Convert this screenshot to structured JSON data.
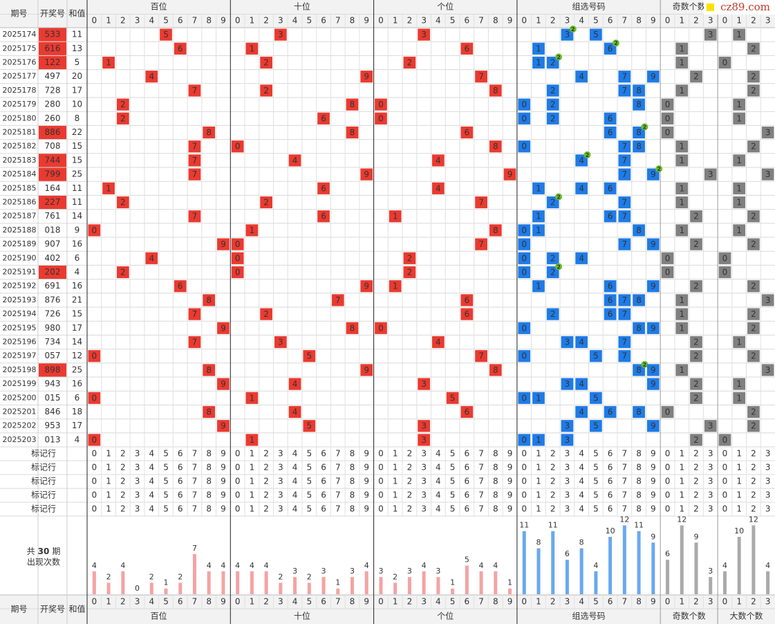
{
  "header": {
    "columns": [
      "期号",
      "开奖号",
      "和值"
    ],
    "groups": [
      "百位",
      "十位",
      "个位",
      "组选号码",
      "奇数个数",
      "大数个数"
    ],
    "digits": [
      0,
      1,
      2,
      3,
      4,
      5,
      6,
      7,
      8,
      9
    ],
    "counts": [
      0,
      1,
      2,
      3
    ]
  },
  "watermark": "cz89.com",
  "rows": [
    {
      "period": 2025174,
      "number": "533",
      "sum": 11,
      "digits": [
        5,
        3,
        3
      ],
      "odd": 3,
      "big": 1,
      "repeat": 2
    },
    {
      "period": 2025175,
      "number": "616",
      "sum": 13,
      "digits": [
        6,
        1,
        6
      ],
      "odd": 1,
      "big": 2,
      "repeat": 2
    },
    {
      "period": 2025176,
      "number": "122",
      "sum": 5,
      "digits": [
        1,
        2,
        2
      ],
      "odd": 1,
      "big": 0,
      "repeat": 2
    },
    {
      "period": 2025177,
      "number": "497",
      "sum": 20,
      "digits": [
        4,
        9,
        7
      ],
      "odd": 2,
      "big": 2
    },
    {
      "period": 2025178,
      "number": "728",
      "sum": 17,
      "digits": [
        7,
        2,
        8
      ],
      "odd": 1,
      "big": 2
    },
    {
      "period": 2025179,
      "number": "280",
      "sum": 10,
      "digits": [
        2,
        8,
        0
      ],
      "odd": 0,
      "big": 1
    },
    {
      "period": 2025180,
      "number": "260",
      "sum": 8,
      "digits": [
        2,
        6,
        0
      ],
      "odd": 0,
      "big": 1
    },
    {
      "period": 2025181,
      "number": "886",
      "sum": 22,
      "digits": [
        8,
        8,
        6
      ],
      "odd": 0,
      "big": 3,
      "repeat": 2
    },
    {
      "period": 2025182,
      "number": "708",
      "sum": 15,
      "digits": [
        7,
        0,
        8
      ],
      "odd": 1,
      "big": 2
    },
    {
      "period": 2025183,
      "number": "744",
      "sum": 15,
      "digits": [
        7,
        4,
        4
      ],
      "odd": 1,
      "big": 1,
      "repeat": 2
    },
    {
      "period": 2025184,
      "number": "799",
      "sum": 25,
      "digits": [
        7,
        9,
        9
      ],
      "odd": 3,
      "big": 3,
      "repeat": 2
    },
    {
      "period": 2025185,
      "number": "164",
      "sum": 11,
      "digits": [
        1,
        6,
        4
      ],
      "odd": 1,
      "big": 1
    },
    {
      "period": 2025186,
      "number": "227",
      "sum": 11,
      "digits": [
        2,
        2,
        7
      ],
      "odd": 1,
      "big": 1,
      "repeat": 2
    },
    {
      "period": 2025187,
      "number": "761",
      "sum": 14,
      "digits": [
        7,
        6,
        1
      ],
      "odd": 2,
      "big": 2
    },
    {
      "period": 2025188,
      "number": "018",
      "sum": 9,
      "digits": [
        0,
        1,
        8
      ],
      "odd": 1,
      "big": 1
    },
    {
      "period": 2025189,
      "number": "907",
      "sum": 16,
      "digits": [
        9,
        0,
        7
      ],
      "odd": 2,
      "big": 2
    },
    {
      "period": 2025190,
      "number": "402",
      "sum": 6,
      "digits": [
        4,
        0,
        2
      ],
      "odd": 0,
      "big": 0
    },
    {
      "period": 2025191,
      "number": "202",
      "sum": 4,
      "digits": [
        2,
        0,
        2
      ],
      "odd": 0,
      "big": 0,
      "repeat": 2
    },
    {
      "period": 2025192,
      "number": "691",
      "sum": 16,
      "digits": [
        6,
        9,
        1
      ],
      "odd": 2,
      "big": 2
    },
    {
      "period": 2025193,
      "number": "876",
      "sum": 21,
      "digits": [
        8,
        7,
        6
      ],
      "odd": 1,
      "big": 3
    },
    {
      "period": 2025194,
      "number": "726",
      "sum": 15,
      "digits": [
        7,
        2,
        6
      ],
      "odd": 1,
      "big": 2
    },
    {
      "period": 2025195,
      "number": "980",
      "sum": 17,
      "digits": [
        9,
        8,
        0
      ],
      "odd": 1,
      "big": 2
    },
    {
      "period": 2025196,
      "number": "734",
      "sum": 14,
      "digits": [
        7,
        3,
        4
      ],
      "odd": 2,
      "big": 1
    },
    {
      "period": 2025197,
      "number": "057",
      "sum": 12,
      "digits": [
        0,
        5,
        7
      ],
      "odd": 2,
      "big": 2
    },
    {
      "period": 2025198,
      "number": "898",
      "sum": 25,
      "digits": [
        8,
        9,
        8
      ],
      "odd": 1,
      "big": 3,
      "repeat": 2
    },
    {
      "period": 2025199,
      "number": "943",
      "sum": 16,
      "digits": [
        9,
        4,
        3
      ],
      "odd": 2,
      "big": 1
    },
    {
      "period": 2025200,
      "number": "015",
      "sum": 6,
      "digits": [
        0,
        1,
        5
      ],
      "odd": 2,
      "big": 1
    },
    {
      "period": 2025201,
      "number": "846",
      "sum": 18,
      "digits": [
        8,
        4,
        6
      ],
      "odd": 0,
      "big": 2
    },
    {
      "period": 2025202,
      "number": "953",
      "sum": 17,
      "digits": [
        9,
        5,
        3
      ],
      "odd": 3,
      "big": 2
    },
    {
      "period": 2025203,
      "number": "013",
      "sum": 4,
      "digits": [
        0,
        1,
        3
      ],
      "odd": 2,
      "big": 0
    }
  ],
  "marker_rows": [
    "标记行",
    "标记行",
    "标记行",
    "标记行",
    "标记行"
  ],
  "stats": {
    "prefix": "共",
    "periods": 30,
    "suffix": "期",
    "label": "出现次数",
    "counts": [
      [
        4,
        2,
        4,
        0,
        2,
        1,
        2,
        7,
        4,
        4
      ],
      [
        4,
        4,
        4,
        2,
        3,
        2,
        3,
        1,
        3,
        4
      ],
      [
        3,
        2,
        3,
        4,
        3,
        1,
        5,
        4,
        4,
        1
      ],
      [
        11,
        8,
        11,
        6,
        8,
        4,
        10,
        12,
        11,
        9
      ],
      [
        6,
        12,
        9,
        3
      ],
      [
        4,
        10,
        12,
        4
      ]
    ]
  }
}
